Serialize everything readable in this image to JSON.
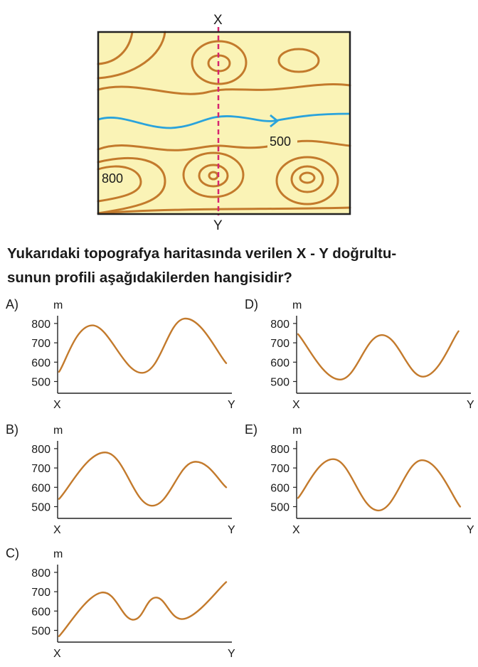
{
  "map": {
    "label_x": "X",
    "label_y": "Y",
    "contour_label_500": "500",
    "contour_label_800": "800",
    "colors": {
      "background": "#faf3b6",
      "contour": "#c37a2c",
      "river": "#2aa3dc",
      "section_line": "#d6246f",
      "frame": "#222222"
    }
  },
  "question": {
    "line1": "Yukarıdaki topografya haritasında verilen X - Y doğrultu-",
    "line2": "sunun profili aşağıdakilerden hangisidir?"
  },
  "options": [
    {
      "id": "A",
      "label": "A)",
      "unit": "m",
      "x_start": "X",
      "x_end": "Y",
      "y_ticks": [
        "800",
        "700",
        "600",
        "500"
      ],
      "profile": [
        [
          0,
          550
        ],
        [
          0.2,
          790
        ],
        [
          0.5,
          545
        ],
        [
          0.75,
          825
        ],
        [
          1,
          595
        ]
      ]
    },
    {
      "id": "B",
      "label": "B)",
      "unit": "m",
      "x_start": "X",
      "x_end": "Y",
      "y_ticks": [
        "800",
        "700",
        "600",
        "500"
      ],
      "profile": [
        [
          0,
          540
        ],
        [
          0.28,
          780
        ],
        [
          0.55,
          505
        ],
        [
          0.8,
          730
        ],
        [
          1,
          600
        ]
      ]
    },
    {
      "id": "C",
      "label": "C)",
      "unit": "m",
      "x_start": "X",
      "x_end": "Y",
      "y_ticks": [
        "800",
        "700",
        "600",
        "500"
      ],
      "profile": [
        [
          0,
          470
        ],
        [
          0.25,
          695
        ],
        [
          0.44,
          555
        ],
        [
          0.58,
          670
        ],
        [
          0.75,
          560
        ],
        [
          1,
          750
        ]
      ]
    },
    {
      "id": "D",
      "label": "D)",
      "unit": "m",
      "x_start": "X",
      "x_end": "Y",
      "y_ticks": [
        "800",
        "700",
        "600",
        "500"
      ],
      "profile": [
        [
          0,
          745
        ],
        [
          0.25,
          510
        ],
        [
          0.5,
          740
        ],
        [
          0.75,
          525
        ],
        [
          0.96,
          760
        ]
      ]
    },
    {
      "id": "E",
      "label": "E)",
      "unit": "m",
      "x_start": "X",
      "x_end": "Y",
      "y_ticks": [
        "800",
        "700",
        "600",
        "500"
      ],
      "profile": [
        [
          0,
          545
        ],
        [
          0.22,
          745
        ],
        [
          0.48,
          480
        ],
        [
          0.74,
          740
        ],
        [
          0.97,
          500
        ]
      ]
    }
  ],
  "profile_color": "#c37a2c"
}
